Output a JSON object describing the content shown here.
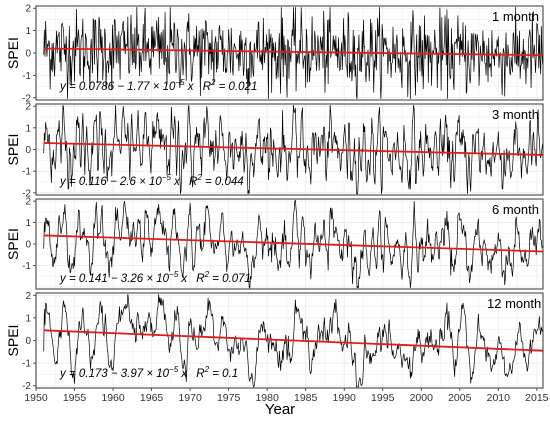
{
  "figure": {
    "xlabel": "Year",
    "x_ticks": [
      1950,
      1955,
      1960,
      1965,
      1970,
      1975,
      1980,
      1985,
      1990,
      1995,
      2000,
      2005,
      2010,
      2015
    ]
  },
  "colors": {
    "series": "#000000",
    "trend": "#e41a1c",
    "panel_border": "#333333",
    "grid": "#ebebeb"
  },
  "chart_data": [
    {
      "type": "line",
      "title": "1 month",
      "ylabel": "SPEI",
      "y_ticks": [
        -2,
        -1,
        0,
        1,
        2
      ],
      "ylim": [
        -2.1,
        2.1
      ],
      "xlim": [
        1950,
        2015.8
      ],
      "series": [
        {
          "role": "SPEI time series (monthly, 1951–2015)",
          "x_range": [
            1951,
            2015.917
          ],
          "amplitude_approx": 1.6
        }
      ],
      "trend": {
        "intercept": 0.0786,
        "slope_per_month": -1.77e-05,
        "start_value": 0.2,
        "end_value": -0.1
      },
      "annotation": {
        "eq_prefix": "y = 0.0786 − 1.77 × 10",
        "exp": "−5",
        "eq_suffix": " x",
        "r2_label": "R",
        "r2_exp": "2",
        "r2_value": " = 0.021"
      }
    },
    {
      "type": "line",
      "title": "3 month",
      "ylabel": "SPEI",
      "y_ticks": [
        -2,
        -1,
        0,
        1,
        2
      ],
      "ylim": [
        -2.1,
        2.1
      ],
      "xlim": [
        1950,
        2015.8
      ],
      "series": [
        {
          "role": "SPEI time series (3-month scale, 1951–2015)",
          "x_range": [
            1951,
            2015.917
          ],
          "amplitude_approx": 1.6
        }
      ],
      "trend": {
        "intercept": 0.116,
        "slope_per_month": -2.6e-05,
        "start_value": 0.3,
        "end_value": -0.25
      },
      "annotation": {
        "eq_prefix": "y = 0.116 − 2.6 × 10",
        "exp": "−5",
        "eq_suffix": " x",
        "r2_label": "R",
        "r2_exp": "2",
        "r2_value": " = 0.044"
      }
    },
    {
      "type": "line",
      "title": "6 month",
      "ylabel": "SPEI",
      "y_ticks": [
        -1,
        0,
        1,
        2
      ],
      "ylim": [
        -2.1,
        2.1
      ],
      "xlim": [
        1950,
        2015.8
      ],
      "series": [
        {
          "role": "SPEI time series (6-month scale, 1951–2015)",
          "x_range": [
            1951,
            2015.917
          ],
          "amplitude_approx": 1.5
        }
      ],
      "trend": {
        "intercept": 0.141,
        "slope_per_month": -3.26e-05,
        "start_value": 0.4,
        "end_value": -0.35
      },
      "annotation": {
        "eq_prefix": "y = 0.141 − 3.26 × 10",
        "exp": "−5",
        "eq_suffix": " x",
        "r2_label": "R",
        "r2_exp": "2",
        "r2_value": " = 0.071"
      }
    },
    {
      "type": "line",
      "title": "12 month",
      "ylabel": "SPEI",
      "y_ticks": [
        -2,
        -1,
        0,
        1,
        2
      ],
      "ylim": [
        -2.1,
        2.1
      ],
      "xlim": [
        1950,
        2015.8
      ],
      "series": [
        {
          "role": "SPEI time series (12-month scale, 1951–2015)",
          "x_range": [
            1951,
            2015.917
          ],
          "amplitude_approx": 1.5
        }
      ],
      "trend": {
        "intercept": 0.173,
        "slope_per_month": -3.97e-05,
        "start_value": 0.45,
        "end_value": -0.45
      },
      "annotation": {
        "eq_prefix": "y = 0.173 − 3.97 × 10",
        "exp": "−5",
        "eq_suffix": " x",
        "r2_label": "R",
        "r2_exp": "2",
        "r2_value": " = 0.1"
      }
    }
  ]
}
